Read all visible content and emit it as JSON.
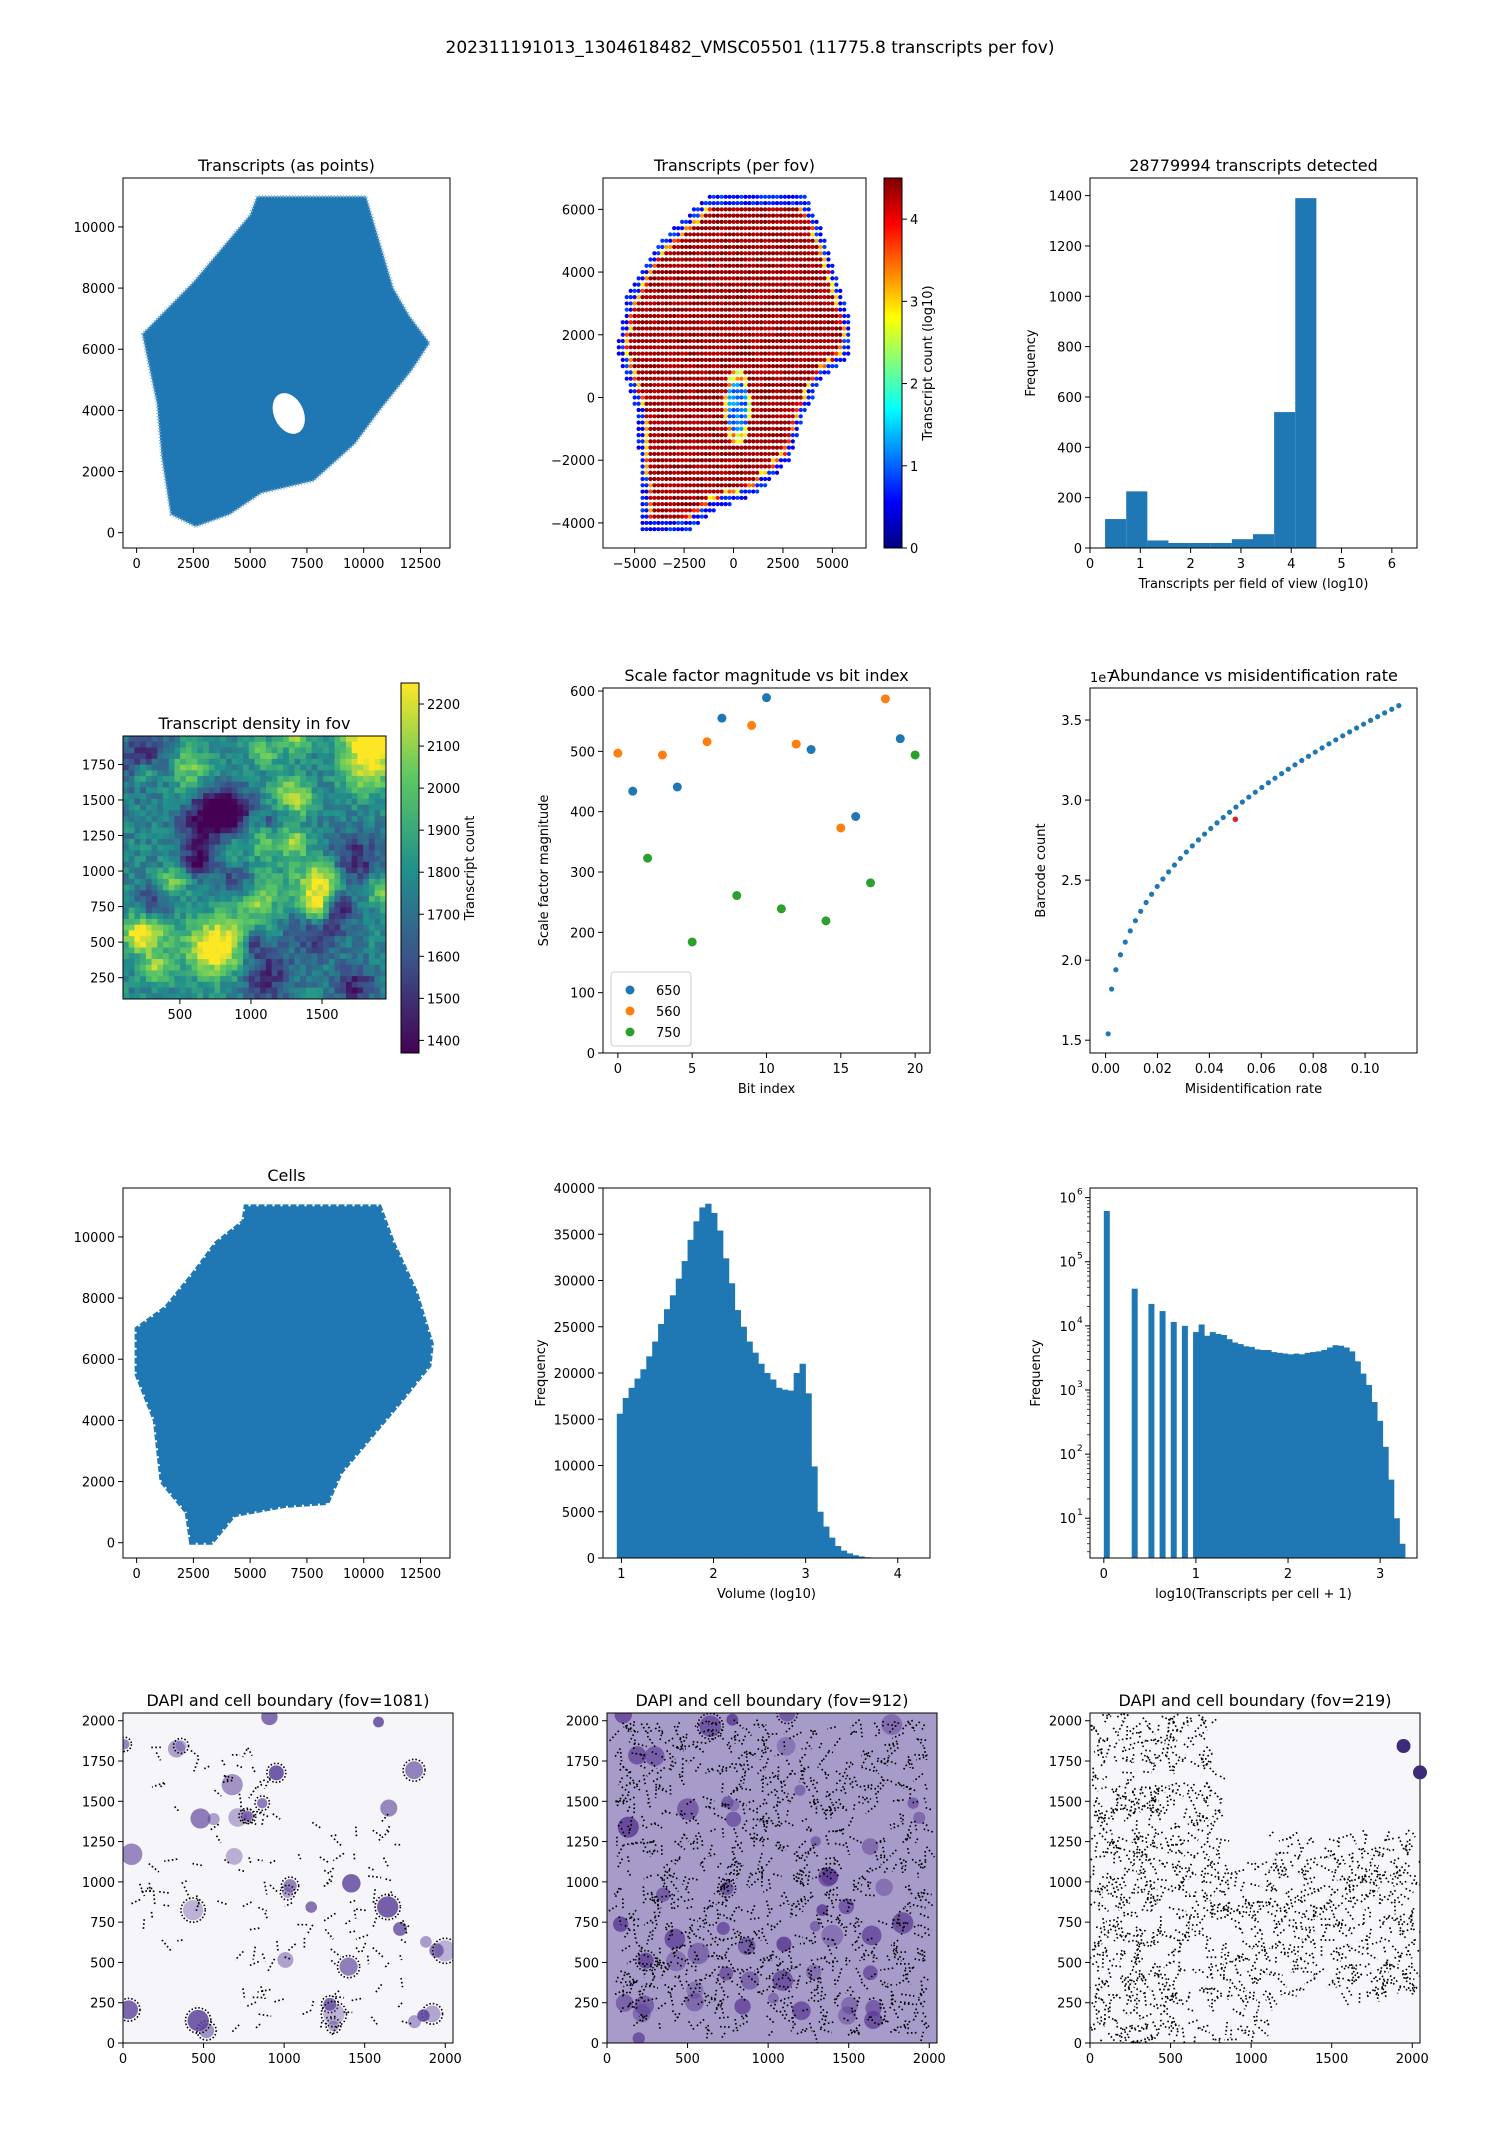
{
  "suptitle": "202311191013_1304618482_VMSC05501 (11775.8 transcripts per fov)",
  "colors": {
    "blue": "#1f77b4",
    "orange": "#ff7f0e",
    "green": "#2ca02c",
    "red": "#d62728"
  },
  "chart_data": [
    {
      "id": "transcripts-points",
      "type": "scatter",
      "title": "Transcripts (as points)",
      "xlim": [
        -600,
        13800
      ],
      "ylim": [
        -500,
        11600
      ],
      "xticks": [
        0,
        2500,
        5000,
        7500,
        10000,
        12500
      ],
      "yticks": [
        0,
        2000,
        4000,
        6000,
        8000,
        10000
      ],
      "outline": [
        [
          2600,
          200
        ],
        [
          1500,
          600
        ],
        [
          1100,
          2500
        ],
        [
          900,
          4200
        ],
        [
          250,
          6500
        ],
        [
          2500,
          8200
        ],
        [
          5000,
          10400
        ],
        [
          5300,
          11000
        ],
        [
          10100,
          11000
        ],
        [
          10500,
          10000
        ],
        [
          11300,
          8000
        ],
        [
          12000,
          7100
        ],
        [
          12900,
          6200
        ],
        [
          12100,
          5300
        ],
        [
          10700,
          4000
        ],
        [
          9600,
          2900
        ],
        [
          7800,
          1700
        ],
        [
          5500,
          1300
        ],
        [
          4100,
          600
        ]
      ],
      "hole": {
        "cx": 6700,
        "cy": 3900,
        "rx": 650,
        "ry": 700
      }
    },
    {
      "id": "transcripts-per-fov",
      "type": "scatter",
      "title": "Transcripts (per fov)",
      "xlim": [
        -6600,
        6700
      ],
      "ylim": [
        -4800,
        7000
      ],
      "xticks": [
        -5000,
        -2500,
        0,
        2500,
        5000
      ],
      "yticks": [
        -4000,
        -2000,
        0,
        2000,
        4000,
        6000
      ],
      "colorbar": {
        "label": "Transcript count (log10)",
        "ticks": [
          0,
          1,
          2,
          3,
          4
        ],
        "range": [
          0,
          4.5
        ]
      },
      "outline": [
        [
          -1200,
          6500
        ],
        [
          3600,
          6500
        ],
        [
          4600,
          5200
        ],
        [
          5300,
          3800
        ],
        [
          6000,
          2200
        ],
        [
          5800,
          1200
        ],
        [
          4400,
          500
        ],
        [
          3600,
          -600
        ],
        [
          2900,
          -2000
        ],
        [
          1200,
          -3100
        ],
        [
          -900,
          -3600
        ],
        [
          -2400,
          -4300
        ],
        [
          -4600,
          -4300
        ],
        [
          -4700,
          -2800
        ],
        [
          -4900,
          -500
        ],
        [
          -5900,
          1500
        ],
        [
          -5400,
          3200
        ],
        [
          -3900,
          4900
        ]
      ]
    },
    {
      "id": "transcripts-hist",
      "type": "bar",
      "title": "28779994 transcripts detected",
      "xlabel": "Transcripts per field of view (log10)",
      "ylabel": "Frequency",
      "xlim": [
        0,
        6.5
      ],
      "ylim": [
        0,
        1470
      ],
      "xticks": [
        0,
        1,
        2,
        3,
        4,
        5,
        6
      ],
      "yticks": [
        0,
        200,
        400,
        600,
        800,
        1000,
        1200,
        1400
      ],
      "bin_edges": [
        0.3,
        0.72,
        1.14,
        1.56,
        1.98,
        2.4,
        2.82,
        3.24,
        3.66,
        4.08,
        4.5
      ],
      "values": [
        115,
        225,
        30,
        20,
        20,
        20,
        35,
        55,
        540,
        1390
      ]
    },
    {
      "id": "density-in-fov",
      "type": "heatmap",
      "title": "Transcript density in fov",
      "xlim": [
        100,
        1950
      ],
      "ylim": [
        100,
        1950
      ],
      "xticks": [
        500,
        1000,
        1500
      ],
      "yticks": [
        250,
        500,
        750,
        1000,
        1250,
        1500,
        1750
      ],
      "colorbar": {
        "label": "Transcript count",
        "ticks": [
          1400,
          1500,
          1600,
          1700,
          1800,
          1900,
          2000,
          2100,
          2200
        ],
        "range": [
          1370,
          2250
        ]
      }
    },
    {
      "id": "scale-factor",
      "type": "scatter",
      "title": "Scale factor magnitude vs bit index",
      "xlabel": "Bit index",
      "ylabel": "Scale factor magnitude",
      "xlim": [
        -1,
        21
      ],
      "ylim": [
        0,
        605
      ],
      "xticks": [
        0,
        5,
        10,
        15,
        20
      ],
      "yticks": [
        0,
        100,
        200,
        300,
        400,
        500,
        600
      ],
      "legend_position": "lower-left",
      "series": [
        {
          "name": "650",
          "color": "#1f77b4",
          "x": [
            1,
            4,
            7,
            10,
            13,
            16,
            19
          ],
          "y": [
            434,
            441,
            555,
            589,
            503,
            392,
            521
          ]
        },
        {
          "name": "560",
          "color": "#ff7f0e",
          "x": [
            0,
            3,
            6,
            9,
            12,
            15,
            18
          ],
          "y": [
            497,
            494,
            516,
            543,
            512,
            373,
            587
          ]
        },
        {
          "name": "750",
          "color": "#2ca02c",
          "x": [
            2,
            5,
            8,
            11,
            14,
            17,
            20
          ],
          "y": [
            323,
            184,
            261,
            239,
            219,
            282,
            494
          ]
        }
      ]
    },
    {
      "id": "abundance-misid",
      "type": "scatter",
      "title": "Abundance vs misidentification rate",
      "xlabel": "Misidentification rate",
      "ylabel": "Barcode count",
      "offset_label": "1e7",
      "xlim": [
        -0.006,
        0.12
      ],
      "ylim": [
        1.42,
        3.7
      ],
      "xticks": [
        0.0,
        0.02,
        0.04,
        0.06,
        0.08,
        0.1
      ],
      "xticklabels": [
        "0.00",
        "0.02",
        "0.04",
        "0.06",
        "0.08",
        "0.10"
      ],
      "yticks": [
        1.5,
        2.0,
        2.5,
        3.0,
        3.5
      ],
      "yticklabels": [
        "1.5",
        "2.0",
        "2.5",
        "3.0",
        "3.5"
      ],
      "curve": {
        "x_start": 0.001,
        "x_end": 0.113,
        "y_start": 1.54,
        "y_end": 3.59
      },
      "highlight": {
        "x": 0.05,
        "y": 2.88,
        "color": "#d62728"
      }
    },
    {
      "id": "cells",
      "type": "scatter",
      "title": "Cells",
      "xlim": [
        -600,
        13800
      ],
      "ylim": [
        -500,
        11600
      ],
      "xticks": [
        0,
        2500,
        5000,
        7500,
        10000,
        12500
      ],
      "yticks": [
        0,
        2000,
        4000,
        6000,
        8000,
        10000
      ],
      "outline": [
        [
          2400,
          0
        ],
        [
          2200,
          1000
        ],
        [
          1100,
          2000
        ],
        [
          800,
          4000
        ],
        [
          0,
          5500
        ],
        [
          0,
          7000
        ],
        [
          1300,
          7700
        ],
        [
          2500,
          8800
        ],
        [
          3500,
          9800
        ],
        [
          4700,
          10500
        ],
        [
          4800,
          11000
        ],
        [
          10700,
          11000
        ],
        [
          11300,
          9800
        ],
        [
          12300,
          8200
        ],
        [
          13000,
          6500
        ],
        [
          12900,
          5800
        ],
        [
          11600,
          4600
        ],
        [
          10700,
          3800
        ],
        [
          9000,
          2300
        ],
        [
          8400,
          1300
        ],
        [
          6500,
          1200
        ],
        [
          4300,
          900
        ],
        [
          3300,
          0
        ]
      ]
    },
    {
      "id": "volume-hist",
      "type": "bar",
      "title": "",
      "xlabel": "Volume (log10)",
      "ylabel": "Frequency",
      "xlim": [
        0.8,
        4.35
      ],
      "ylim": [
        0,
        40000
      ],
      "xticks": [
        1,
        2,
        3,
        4
      ],
      "yticks": [
        0,
        5000,
        10000,
        15000,
        20000,
        25000,
        30000,
        35000,
        40000
      ],
      "bin_range": [
        0.95,
        4.15
      ],
      "values": [
        15600,
        17300,
        18400,
        19400,
        20400,
        21800,
        23400,
        25300,
        26900,
        28400,
        30200,
        32100,
        34400,
        36400,
        37900,
        38300,
        37300,
        35400,
        32400,
        29700,
        26800,
        25000,
        23400,
        22200,
        21000,
        20000,
        19300,
        18400,
        18200,
        18100,
        20000,
        21000,
        17800,
        9900,
        5000,
        3400,
        2200,
        1300,
        800,
        500,
        300,
        160,
        80,
        40,
        20,
        10,
        5,
        2,
        1,
        0
      ]
    },
    {
      "id": "transcripts-per-cell-hist",
      "type": "bar",
      "title": "",
      "xlabel": "log10(Transcripts per cell + 1)",
      "ylabel": "Frequency",
      "log_y": true,
      "xlim": [
        -0.15,
        3.4
      ],
      "ylim_log10": [
        0.38,
        6.15
      ],
      "xticks": [
        0,
        1,
        2,
        3
      ],
      "yticks_log10": [
        1,
        2,
        3,
        4,
        5,
        6
      ],
      "ytick_prefix": "10",
      "yticklabel_exponents": [
        "1",
        "2",
        "3",
        "4",
        "5",
        "6"
      ],
      "bin_start": 0,
      "bin_end": 3.27,
      "values": [
        620000,
        0,
        0,
        0,
        0,
        38000,
        0,
        0,
        22000,
        0,
        17000,
        0,
        11500,
        0,
        10000,
        0,
        8000,
        10500,
        7000,
        8000,
        7500,
        7200,
        6200,
        5500,
        5200,
        4800,
        4700,
        4300,
        4200,
        4200,
        3900,
        3800,
        3700,
        3600,
        3700,
        3600,
        3800,
        3900,
        4000,
        4200,
        4600,
        5000,
        4900,
        4600,
        4000,
        2800,
        1800,
        1200,
        650,
        330,
        130,
        40,
        10,
        4
      ]
    },
    {
      "id": "dapi-1081",
      "type": "heatmap",
      "title": "DAPI and cell boundary (fov=1081)",
      "xlim": [
        0,
        2048
      ],
      "ylim": [
        0,
        2048
      ],
      "xticks": [
        0,
        500,
        1000,
        1500,
        2000
      ],
      "yticks": [
        0,
        250,
        500,
        750,
        1000,
        1250,
        1500,
        1750,
        2000
      ]
    },
    {
      "id": "dapi-912",
      "type": "heatmap",
      "title": "DAPI and cell boundary (fov=912)",
      "xlim": [
        0,
        2048
      ],
      "ylim": [
        0,
        2048
      ],
      "xticks": [
        0,
        500,
        1000,
        1500,
        2000
      ],
      "yticks": [
        0,
        250,
        500,
        750,
        1000,
        1250,
        1500,
        1750,
        2000
      ]
    },
    {
      "id": "dapi-219",
      "type": "heatmap",
      "title": "DAPI and cell boundary (fov=219)",
      "xlim": [
        0,
        2048
      ],
      "ylim": [
        0,
        2048
      ],
      "xticks": [
        0,
        500,
        1000,
        1500,
        2000
      ],
      "yticks": [
        0,
        250,
        500,
        750,
        1000,
        1250,
        1500,
        1750,
        2000
      ]
    }
  ]
}
